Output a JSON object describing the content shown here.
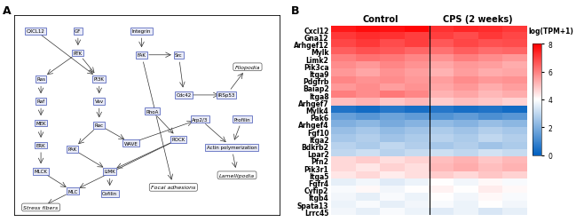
{
  "panel_labels": [
    "A",
    "B"
  ],
  "diagram": {
    "nodes": [
      "CXCL12",
      "GF",
      "RTK",
      "Integrin",
      "FAK",
      "Src",
      "PI3K",
      "Ras",
      "Raf",
      "MEK",
      "ERK",
      "Vav",
      "Rac",
      "Cdc42",
      "RhoA",
      "ROCK",
      "PAK",
      "LIMK",
      "Cofilin",
      "MLCK",
      "MLC",
      "IRSp53",
      "WAVE",
      "Arp2/3",
      "Profilin",
      "Actin polymerization"
    ],
    "outcomes": [
      "Stress fibers",
      "Lamellipodia",
      "Filopodia",
      "Focal adhesions"
    ],
    "edges": [
      [
        "GF",
        "RTK"
      ],
      [
        "RTK",
        "Ras"
      ],
      [
        "RTK",
        "PI3K"
      ],
      [
        "CXCL12",
        "PI3K"
      ],
      [
        "Integrin",
        "FAK"
      ],
      [
        "FAK",
        "Src"
      ],
      [
        "Ras",
        "Raf"
      ],
      [
        "Raf",
        "MEK"
      ],
      [
        "MEK",
        "ERK"
      ],
      [
        "ERK",
        "MLCK"
      ],
      [
        "MLCK",
        "MLC"
      ],
      [
        "MLC",
        "Stress fibers"
      ],
      [
        "PI3K",
        "Vav"
      ],
      [
        "Vav",
        "Rac"
      ],
      [
        "Rac",
        "PAK"
      ],
      [
        "PAK",
        "LIMK"
      ],
      [
        "LIMK",
        "Cofilin"
      ],
      [
        "Rac",
        "WAVE"
      ],
      [
        "WAVE",
        "Arp2/3"
      ],
      [
        "Arp2/3",
        "Actin polymerization"
      ],
      [
        "Profilin",
        "Actin polymerization"
      ],
      [
        "Actin polymerization",
        "Lamellipodia"
      ],
      [
        "Src",
        "Cdc42"
      ],
      [
        "Cdc42",
        "IRSp53"
      ],
      [
        "IRSp53",
        "Filopodia"
      ],
      [
        "RhoA",
        "ROCK"
      ],
      [
        "ROCK",
        "MLC"
      ],
      [
        "ROCK",
        "LIMK"
      ],
      [
        "FAK",
        "Focal adhesions"
      ]
    ]
  },
  "chart_data": {
    "type": "heatmap",
    "groups": [
      {
        "label": "Control",
        "columns": 4
      },
      {
        "label": "CPS (2 weeks)",
        "columns": 4
      }
    ],
    "categories": [
      "Cxcl12",
      "Gna12",
      "Arhgef12",
      "Mylk",
      "Limk2",
      "Pik3ca",
      "Itga9",
      "Pdgfrb",
      "Baiap2",
      "Itga8",
      "Arhgef7",
      "Mylk4",
      "Pak6",
      "Arhgef4",
      "Fgf10",
      "Itga2",
      "Bdkrb2",
      "Lpar2",
      "Pfn2",
      "Pik3r1",
      "Itga5",
      "Fgfr4",
      "Cyfip2",
      "Itgb4",
      "Spata13",
      "Lrrc45"
    ],
    "cells": [
      [
        7.6,
        7.8,
        7.7,
        7.9,
        7.2,
        7.4,
        7.3,
        7.1
      ],
      [
        7.1,
        7.3,
        7.2,
        7.0,
        7.0,
        6.8,
        7.1,
        6.9
      ],
      [
        6.9,
        7.1,
        6.8,
        7.0,
        6.6,
        6.9,
        6.7,
        6.8
      ],
      [
        6.5,
        6.7,
        6.6,
        6.4,
        6.2,
        6.5,
        6.3,
        6.4
      ],
      [
        6.0,
        6.2,
        6.1,
        5.9,
        5.7,
        6.0,
        5.8,
        5.6
      ],
      [
        5.8,
        5.6,
        5.9,
        5.7,
        5.4,
        5.6,
        5.5,
        5.3
      ],
      [
        5.6,
        5.4,
        5.7,
        5.5,
        5.2,
        5.5,
        5.3,
        5.4
      ],
      [
        5.9,
        5.7,
        5.8,
        5.6,
        5.5,
        5.8,
        5.6,
        5.7
      ],
      [
        5.6,
        5.8,
        5.5,
        5.7,
        5.4,
        5.6,
        5.3,
        5.5
      ],
      [
        6.0,
        5.8,
        6.1,
        5.9,
        5.2,
        5.4,
        5.1,
        5.3
      ],
      [
        5.0,
        5.2,
        4.9,
        5.1,
        4.8,
        5.0,
        4.9,
        4.7
      ],
      [
        0.5,
        0.3,
        0.6,
        0.4,
        0.6,
        0.4,
        0.5,
        0.3
      ],
      [
        1.6,
        1.4,
        1.7,
        1.5,
        1.3,
        1.5,
        1.2,
        1.4
      ],
      [
        2.0,
        2.2,
        1.9,
        2.1,
        2.3,
        2.1,
        2.4,
        2.2
      ],
      [
        2.4,
        2.6,
        2.3,
        2.5,
        2.7,
        2.5,
        2.8,
        2.6
      ],
      [
        2.6,
        2.8,
        2.5,
        2.7,
        2.9,
        2.7,
        3.0,
        2.8
      ],
      [
        2.9,
        2.7,
        3.0,
        2.8,
        2.6,
        2.8,
        2.5,
        2.7
      ],
      [
        3.0,
        3.2,
        2.9,
        3.1,
        3.2,
        3.0,
        3.3,
        3.1
      ],
      [
        4.6,
        4.8,
        4.5,
        4.7,
        5.0,
        5.2,
        4.9,
        5.1
      ],
      [
        4.6,
        4.4,
        4.7,
        4.5,
        5.1,
        5.3,
        5.0,
        5.2
      ],
      [
        4.4,
        4.6,
        4.3,
        4.5,
        4.8,
        4.6,
        4.9,
        4.7
      ],
      [
        3.6,
        3.8,
        3.5,
        3.7,
        4.0,
        3.8,
        4.1,
        3.9
      ],
      [
        3.9,
        4.1,
        3.8,
        4.0,
        4.2,
        4.0,
        4.3,
        4.1
      ],
      [
        3.8,
        3.6,
        3.9,
        3.7,
        4.0,
        3.8,
        4.1,
        3.9
      ],
      [
        3.7,
        3.9,
        3.6,
        3.8,
        3.9,
        3.7,
        4.0,
        3.8
      ],
      [
        3.8,
        3.6,
        3.9,
        3.7,
        3.5,
        3.7,
        3.4,
        3.6
      ]
    ],
    "colorbar": {
      "label": "log(TPM+1)",
      "range": [
        0,
        8
      ],
      "ticks": [
        0,
        2,
        4,
        6,
        8
      ]
    }
  }
}
